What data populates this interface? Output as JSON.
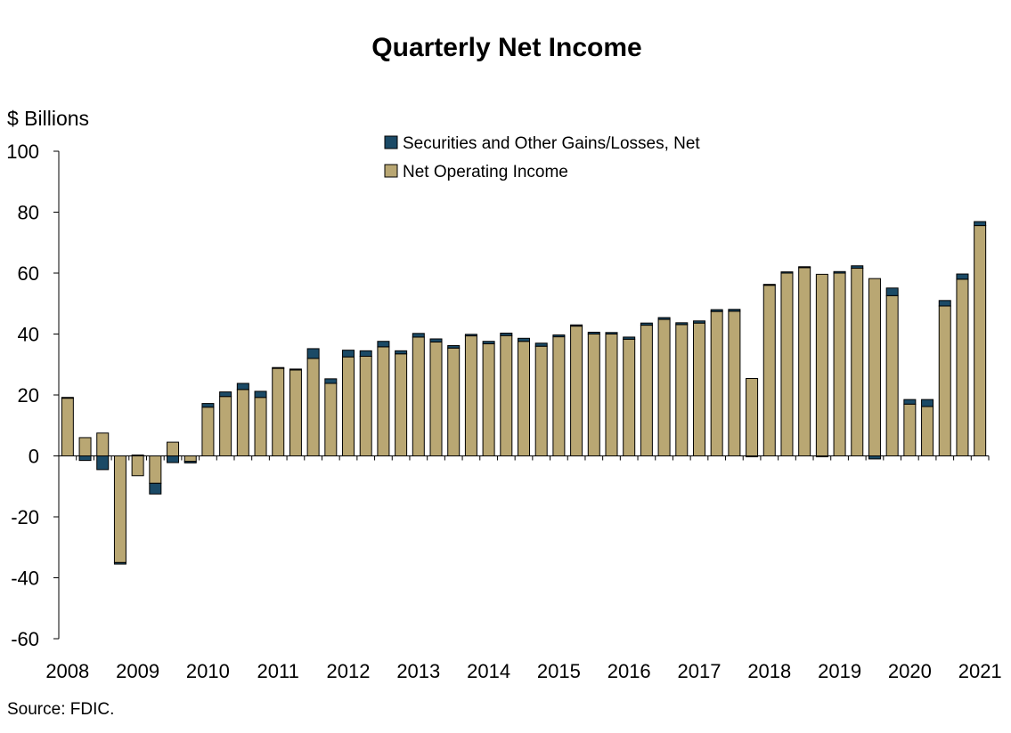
{
  "chart_data": {
    "type": "bar",
    "stacked": true,
    "title": "Quarterly Net Income",
    "ylabel": "$ Billions",
    "ylim": [
      -60,
      100
    ],
    "yticks": [
      100,
      80,
      60,
      40,
      20,
      0,
      -20,
      -40,
      -60
    ],
    "x_tick_labels": [
      "2008",
      "2009",
      "2010",
      "2011",
      "2012",
      "2013",
      "2014",
      "2015",
      "2016",
      "2017",
      "2018",
      "2019",
      "2020",
      "2021"
    ],
    "legend_placement": "top-center",
    "colors": {
      "gains": "#1b4a66",
      "operating": "#b9a773",
      "outline": "#000000"
    },
    "categories": [
      "2008Q1",
      "2008Q2",
      "2008Q3",
      "2008Q4",
      "2009Q1",
      "2009Q2",
      "2009Q3",
      "2009Q4",
      "2010Q1",
      "2010Q2",
      "2010Q3",
      "2010Q4",
      "2011Q1",
      "2011Q2",
      "2011Q3",
      "2011Q4",
      "2012Q1",
      "2012Q2",
      "2012Q3",
      "2012Q4",
      "2013Q1",
      "2013Q2",
      "2013Q3",
      "2013Q4",
      "2014Q1",
      "2014Q2",
      "2014Q3",
      "2014Q4",
      "2015Q1",
      "2015Q2",
      "2015Q3",
      "2015Q4",
      "2016Q1",
      "2016Q2",
      "2016Q3",
      "2016Q4",
      "2017Q1",
      "2017Q2",
      "2017Q3",
      "2017Q4",
      "2018Q1",
      "2018Q2",
      "2018Q3",
      "2018Q4",
      "2019Q1",
      "2019Q2",
      "2019Q3",
      "2019Q4",
      "2020Q1",
      "2020Q2",
      "2020Q3",
      "2020Q4",
      "2021Q1"
    ],
    "series": [
      {
        "name": "Securities and Other Gains/Losses, Net",
        "values": [
          0.2,
          -1.5,
          -4.5,
          -0.5,
          0.3,
          -3.5,
          -2.2,
          -0.5,
          1.2,
          1.5,
          2.0,
          2.0,
          0.2,
          0.3,
          3.2,
          1.5,
          2.2,
          1.8,
          1.8,
          1.0,
          1.2,
          1.0,
          0.8,
          0.5,
          0.8,
          0.8,
          1.0,
          1.0,
          0.6,
          0.4,
          0.6,
          0.5,
          0.7,
          0.7,
          0.6,
          0.6,
          0.7,
          0.6,
          0.6,
          -0.3,
          0.3,
          0.4,
          0.3,
          -0.3,
          0.5,
          0.8,
          -1.0,
          2.5,
          1.5,
          2.3,
          1.8,
          1.7,
          1.3
        ]
      },
      {
        "name": "Net Operating Income",
        "values": [
          19.0,
          6.0,
          7.5,
          -35.0,
          -6.5,
          -9.0,
          4.5,
          -1.8,
          16.0,
          19.5,
          21.8,
          19.2,
          28.8,
          28.2,
          32.0,
          23.8,
          32.5,
          32.7,
          35.8,
          33.5,
          39.0,
          37.4,
          35.4,
          39.4,
          36.8,
          39.5,
          37.6,
          36.0,
          39.1,
          42.6,
          40.0,
          40.0,
          38.3,
          42.9,
          44.8,
          43.1,
          43.6,
          47.4,
          47.5,
          25.4,
          56.0,
          60.0,
          61.8,
          59.6,
          60.0,
          61.6,
          58.2,
          52.6,
          17.0,
          16.2,
          49.2,
          58.0,
          75.6
        ]
      }
    ],
    "source": "Source:  FDIC."
  }
}
